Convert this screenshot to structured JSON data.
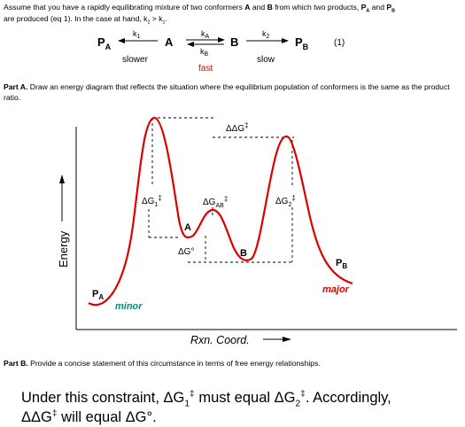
{
  "intro": {
    "text1": " Assume that you have a rapidly equilibrating mixture of two conformers ",
    "A": "A",
    "and": " and ",
    "B": "B",
    "text2": " from which two products, ",
    "PA_P": "P",
    "PA_sub": "A",
    "and2": " and ",
    "PB_P": "P",
    "PB_sub": "B",
    "line2": "are produced (eq 1). In the case at hand, k",
    "k2sub": "2",
    "gt": " > k",
    "k1sub": "1",
    "end": "."
  },
  "scheme": {
    "PA": "P",
    "PA_sub": "A",
    "A": "A",
    "B": "B",
    "PB": "P",
    "PB_sub": "B",
    "k1": "k",
    "k1_sub": "1",
    "kA": "k",
    "kA_sub": "A",
    "kB": "k",
    "kB_sub": "B",
    "k2": "k",
    "k2_sub": "2",
    "slower": "slower",
    "fast": "fast",
    "slow": "slow",
    "eq": "(1)"
  },
  "partA": {
    "label": "Part A.",
    "text": " Draw an energy diagram that reflects the situation where the equilibrium population of conformers is the same as the product ratio."
  },
  "diagram": {
    "y_axis_label": "Energy",
    "x_axis_label": "Rxn. Coord.",
    "labels": {
      "dG1": "ΔG",
      "dG1_sub": "1",
      "dG1_sup": "‡",
      "dGAB": "ΔG",
      "dGAB_sub": "AB",
      "dGAB_sup": "‡",
      "dG2": "ΔG",
      "dG2_sub": "2",
      "dG2_sup": "‡",
      "ddG": "ΔΔG",
      "ddG_sup": "‡",
      "dG0": "ΔG°",
      "A": "A",
      "B": "B",
      "PA": "P",
      "PA_sub": "A",
      "PB": "P",
      "PB_sub": "B",
      "minor": "minor",
      "major": "major"
    },
    "colors": {
      "curve": "#dd0000",
      "minor": "#008b8b",
      "major": "#dd0000",
      "fast": "#dd0000"
    }
  },
  "partB": {
    "label": "Part B.",
    "text": "  Provide a concise statement of this circumstance in terms of free energy relationships."
  },
  "answer": {
    "t1": "Under this  constraint, ΔG",
    "s1": "1",
    "x1": "‡",
    "t2": " must equal ΔG",
    "s2": "2",
    "x2": "‡",
    "t3": ". Accordingly,",
    "t4": "ΔΔG",
    "x4": "‡",
    "t5": " will equal ΔG°."
  }
}
